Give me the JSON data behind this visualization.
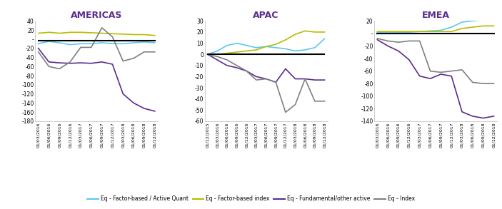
{
  "americas": {
    "title": "AMERICAS",
    "x_labels": [
      "01/03/2016",
      "01/06/2016",
      "01/09/2016",
      "01/12/2016",
      "01/03/2017",
      "01/06/2017",
      "01/09/2017",
      "01/12/2017",
      "01/03/2018",
      "01/06/2018",
      "01/09/2018",
      "01/12/2018"
    ],
    "factor_active_quant": [
      -10,
      -5,
      -8,
      -12,
      -10,
      -10,
      -8,
      -10,
      -10,
      -8,
      -6,
      -8
    ],
    "factor_index": [
      13,
      15,
      13,
      15,
      15,
      14,
      13,
      12,
      11,
      10,
      10,
      8
    ],
    "fundamental": [
      -20,
      -50,
      -52,
      -53,
      -52,
      -53,
      -50,
      -55,
      -120,
      -140,
      -152,
      -158
    ],
    "black_line": [
      -3,
      -3,
      -3,
      -3,
      -3,
      -3,
      -3,
      -3,
      -3,
      -3,
      -3,
      -3
    ],
    "gray_line": [
      -28,
      -60,
      -65,
      -50,
      -18,
      -18,
      25,
      5,
      -48,
      -42,
      -28,
      -28
    ],
    "ylim": [
      -180,
      40
    ],
    "yticks": [
      40,
      20,
      0,
      -20,
      -40,
      -60,
      -80,
      -100,
      -120,
      -140,
      -160,
      -180
    ],
    "ytick_labels": [
      "40",
      "20",
      "-",
      "-20",
      "-40",
      "-60",
      "-80",
      "-100",
      "-120",
      "-140",
      "-160",
      "-180"
    ]
  },
  "apac": {
    "title": "APAC",
    "x_labels": [
      "01/12/2015",
      "01/03/2016",
      "01/06/2016",
      "01/09/2016",
      "01/12/2016",
      "01/03/2017",
      "01/06/2017",
      "01/09/2017",
      "01/12/2017",
      "01/03/2018",
      "01/06/2018",
      "01/09/2018",
      "01/12/2018"
    ],
    "factor_active_quant": [
      0,
      3,
      8,
      10,
      8,
      6,
      7,
      6,
      5,
      3,
      4,
      6,
      14
    ],
    "factor_index": [
      0,
      0,
      1,
      2,
      3,
      4,
      7,
      9,
      13,
      18,
      21,
      20,
      20
    ],
    "fundamental": [
      0,
      -5,
      -10,
      -12,
      -15,
      -20,
      -22,
      -25,
      -13,
      -22,
      -22,
      -23,
      -23
    ],
    "black_line": [
      0,
      0,
      0,
      0,
      0,
      0,
      0,
      0,
      0,
      0,
      0,
      0,
      0
    ],
    "gray_line": [
      0,
      -2,
      -5,
      -10,
      -15,
      -23,
      -22,
      -25,
      -52,
      -45,
      -22,
      -42,
      -42
    ],
    "ylim": [
      -60,
      30
    ],
    "yticks": [
      30,
      20,
      10,
      0,
      -10,
      -20,
      -30,
      -40,
      -50,
      -60
    ],
    "ytick_labels": [
      "30",
      "20",
      "10",
      "0",
      "-10",
      "-20",
      "-30",
      "-40",
      "-50",
      "-60"
    ]
  },
  "emea": {
    "title": "EMEA",
    "x_labels": [
      "01/03/2016",
      "01/06/2016",
      "01/09/2016",
      "01/12/2016",
      "01/03/2017",
      "01/06/2017",
      "01/09/2017",
      "01/12/2017",
      "01/03/2018",
      "01/06/2018",
      "01/09/2018",
      "01/12/2018"
    ],
    "factor_active_quant": [
      2,
      2,
      2,
      2,
      3,
      4,
      5,
      10,
      18,
      20,
      22,
      22
    ],
    "factor_index": [
      3,
      3,
      3,
      3,
      3,
      3,
      3,
      3,
      8,
      10,
      12,
      12
    ],
    "fundamental": [
      -10,
      -20,
      -28,
      -42,
      -68,
      -72,
      -65,
      -68,
      -125,
      -132,
      -135,
      -132
    ],
    "black_line": [
      0,
      0,
      0,
      0,
      0,
      0,
      0,
      0,
      0,
      0,
      0,
      0
    ],
    "gray_line": [
      -8,
      -12,
      -14,
      -12,
      -12,
      -60,
      -62,
      -60,
      -58,
      -78,
      -80,
      -80
    ],
    "ylim": [
      -140,
      20
    ],
    "yticks": [
      20,
      0,
      -20,
      -40,
      -60,
      -80,
      -100,
      -120,
      -140
    ],
    "ytick_labels": [
      "20",
      "-",
      "-20",
      "-40",
      "-60",
      "-80",
      "-100",
      "-120",
      "-140"
    ]
  },
  "colors": {
    "factor_active_quant": "#5bc8f5",
    "factor_index": "#b5bd00",
    "fundamental": "#5b2d8e",
    "black_line": "#000000",
    "gray_line": "#808080"
  },
  "legend": [
    {
      "label": "Eq - Factor-based / Active Quant",
      "color": "#5bc8f5"
    },
    {
      "label": "Eq - Factor-based index",
      "color": "#b5bd00"
    },
    {
      "label": "Eq - Fundamental/other active",
      "color": "#5b2d8e"
    },
    {
      "label": "Eq - Index",
      "color": "#808080"
    }
  ],
  "title_color": "#5b2d8e",
  "title_fontsize": 9
}
